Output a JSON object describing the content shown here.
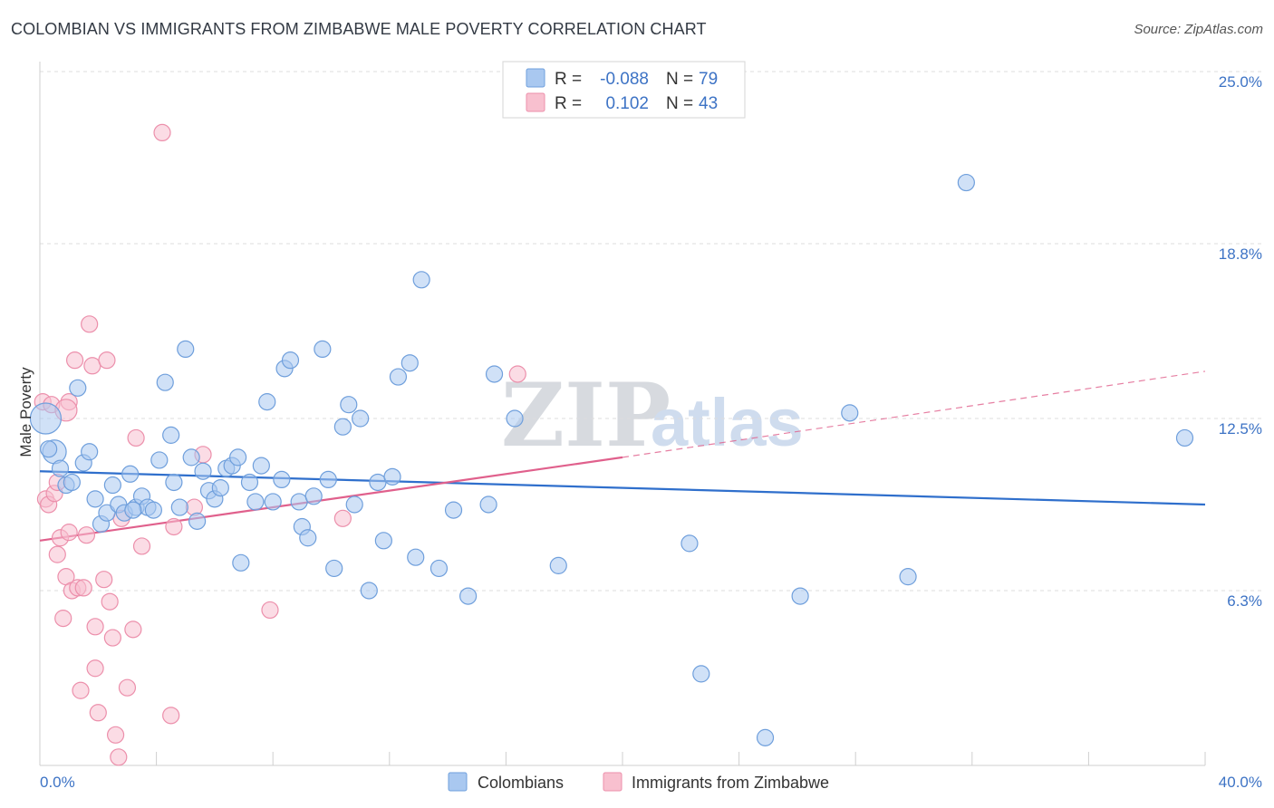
{
  "header": {
    "title": "COLOMBIAN VS IMMIGRANTS FROM ZIMBABWE MALE POVERTY CORRELATION CHART",
    "source": "Source: ZipAtlas.com"
  },
  "watermark": {
    "zip": "ZIP",
    "atlas": "atlas"
  },
  "legend": {
    "rows": [
      {
        "r_label": "R =",
        "r_value": "-0.088",
        "n_label": "N =",
        "n_value": "79"
      },
      {
        "r_label": "R =",
        "r_value": "0.102",
        "n_label": "N =",
        "n_value": "43"
      }
    ]
  },
  "bottom_legend": {
    "series_a": "Colombians",
    "series_b": "Immigrants from Zimbabwe"
  },
  "colors": {
    "blue_fill": "#a9c8f0",
    "blue_stroke": "#6f9fdc",
    "blue_line": "#2f6fcc",
    "pink_fill": "#f8c0cf",
    "pink_stroke": "#ec8fab",
    "pink_line": "#e0608c",
    "grid": "#dcdcdc",
    "tick_text": "#3d73c5"
  },
  "chart_data": {
    "type": "scatter",
    "title": "COLOMBIAN VS IMMIGRANTS FROM ZIMBABWE MALE POVERTY CORRELATION CHART",
    "xlabel": "",
    "ylabel": "Male Poverty",
    "xlim": [
      0,
      40
    ],
    "ylim": [
      0,
      25
    ],
    "x_tick_labels": [
      "0.0%",
      "40.0%"
    ],
    "y_ticks": [
      6.3,
      12.5,
      18.8,
      25.0
    ],
    "y_tick_labels": [
      "6.3%",
      "12.5%",
      "18.8%",
      "25.0%"
    ],
    "grid": true,
    "legend_position": "top-center",
    "series": [
      {
        "name": "Colombians",
        "r": -0.088,
        "n": 79,
        "trend": {
          "x": [
            0,
            40
          ],
          "y": [
            10.6,
            9.4
          ]
        },
        "points": [
          [
            0.2,
            12.5
          ],
          [
            0.5,
            11.3
          ],
          [
            0.7,
            10.7
          ],
          [
            0.9,
            10.1
          ],
          [
            1.1,
            10.2
          ],
          [
            1.3,
            13.6
          ],
          [
            1.5,
            10.9
          ],
          [
            1.7,
            11.3
          ],
          [
            1.9,
            9.6
          ],
          [
            2.1,
            8.7
          ],
          [
            2.3,
            9.1
          ],
          [
            2.5,
            10.1
          ],
          [
            2.7,
            9.4
          ],
          [
            2.9,
            9.1
          ],
          [
            3.1,
            10.5
          ],
          [
            3.3,
            9.3
          ],
          [
            3.5,
            9.7
          ],
          [
            3.7,
            9.3
          ],
          [
            3.9,
            9.2
          ],
          [
            4.1,
            11.0
          ],
          [
            4.3,
            13.8
          ],
          [
            4.5,
            11.9
          ],
          [
            4.6,
            10.2
          ],
          [
            4.8,
            9.3
          ],
          [
            5.0,
            15.0
          ],
          [
            5.2,
            11.1
          ],
          [
            5.4,
            8.8
          ],
          [
            5.6,
            10.6
          ],
          [
            5.8,
            9.9
          ],
          [
            6.0,
            9.6
          ],
          [
            6.2,
            10.0
          ],
          [
            6.4,
            10.7
          ],
          [
            6.6,
            10.8
          ],
          [
            6.8,
            11.1
          ],
          [
            6.9,
            7.3
          ],
          [
            7.2,
            10.2
          ],
          [
            7.4,
            9.5
          ],
          [
            7.6,
            10.8
          ],
          [
            7.8,
            13.1
          ],
          [
            8.0,
            9.5
          ],
          [
            8.3,
            10.3
          ],
          [
            8.4,
            14.3
          ],
          [
            8.6,
            14.6
          ],
          [
            8.9,
            9.5
          ],
          [
            9.0,
            8.6
          ],
          [
            9.2,
            8.2
          ],
          [
            9.4,
            9.7
          ],
          [
            9.7,
            15.0
          ],
          [
            9.9,
            10.3
          ],
          [
            10.1,
            7.1
          ],
          [
            10.4,
            12.2
          ],
          [
            10.6,
            13.0
          ],
          [
            10.8,
            9.4
          ],
          [
            11.0,
            12.5
          ],
          [
            11.3,
            6.3
          ],
          [
            11.6,
            10.2
          ],
          [
            11.8,
            8.1
          ],
          [
            12.1,
            10.4
          ],
          [
            12.3,
            14.0
          ],
          [
            12.7,
            14.5
          ],
          [
            12.9,
            7.5
          ],
          [
            13.1,
            17.5
          ],
          [
            13.7,
            7.1
          ],
          [
            14.2,
            9.2
          ],
          [
            14.7,
            6.1
          ],
          [
            15.4,
            9.4
          ],
          [
            15.6,
            14.1
          ],
          [
            16.3,
            12.5
          ],
          [
            17.8,
            7.2
          ],
          [
            22.3,
            8.0
          ],
          [
            22.7,
            3.3
          ],
          [
            24.9,
            1.0
          ],
          [
            26.1,
            6.1
          ],
          [
            27.8,
            12.7
          ],
          [
            29.8,
            6.8
          ],
          [
            31.8,
            21.0
          ],
          [
            39.3,
            11.8
          ],
          [
            0.3,
            11.4
          ],
          [
            3.2,
            9.2
          ]
        ]
      },
      {
        "name": "Immigrants from Zimbabwe",
        "r": 0.102,
        "n": 43,
        "trend": {
          "x": [
            0,
            20
          ],
          "y": [
            8.1,
            11.1
          ]
        },
        "trend_dashed": {
          "x": [
            20,
            40
          ],
          "y": [
            11.1,
            14.2
          ]
        },
        "points": [
          [
            0.1,
            13.1
          ],
          [
            0.2,
            9.6
          ],
          [
            0.3,
            9.4
          ],
          [
            0.4,
            13.0
          ],
          [
            0.5,
            9.8
          ],
          [
            0.6,
            7.6
          ],
          [
            0.6,
            10.2
          ],
          [
            0.7,
            8.2
          ],
          [
            0.8,
            5.3
          ],
          [
            0.9,
            6.8
          ],
          [
            1.0,
            8.4
          ],
          [
            1.0,
            13.1
          ],
          [
            1.1,
            6.3
          ],
          [
            1.2,
            14.6
          ],
          [
            1.3,
            6.4
          ],
          [
            1.4,
            2.7
          ],
          [
            1.5,
            6.4
          ],
          [
            1.6,
            8.3
          ],
          [
            1.7,
            15.9
          ],
          [
            1.8,
            14.4
          ],
          [
            1.9,
            3.5
          ],
          [
            1.9,
            5.0
          ],
          [
            2.0,
            1.9
          ],
          [
            2.2,
            6.7
          ],
          [
            2.3,
            14.6
          ],
          [
            2.4,
            5.9
          ],
          [
            2.5,
            4.6
          ],
          [
            2.6,
            1.1
          ],
          [
            2.7,
            0.3
          ],
          [
            2.8,
            8.9
          ],
          [
            3.0,
            2.8
          ],
          [
            3.2,
            4.9
          ],
          [
            3.3,
            11.8
          ],
          [
            3.5,
            7.9
          ],
          [
            4.2,
            22.8
          ],
          [
            4.5,
            1.8
          ],
          [
            4.6,
            8.6
          ],
          [
            5.3,
            9.3
          ],
          [
            5.6,
            11.2
          ],
          [
            7.9,
            5.6
          ],
          [
            10.4,
            8.9
          ],
          [
            16.4,
            14.1
          ],
          [
            0.9,
            12.8
          ]
        ]
      }
    ]
  }
}
